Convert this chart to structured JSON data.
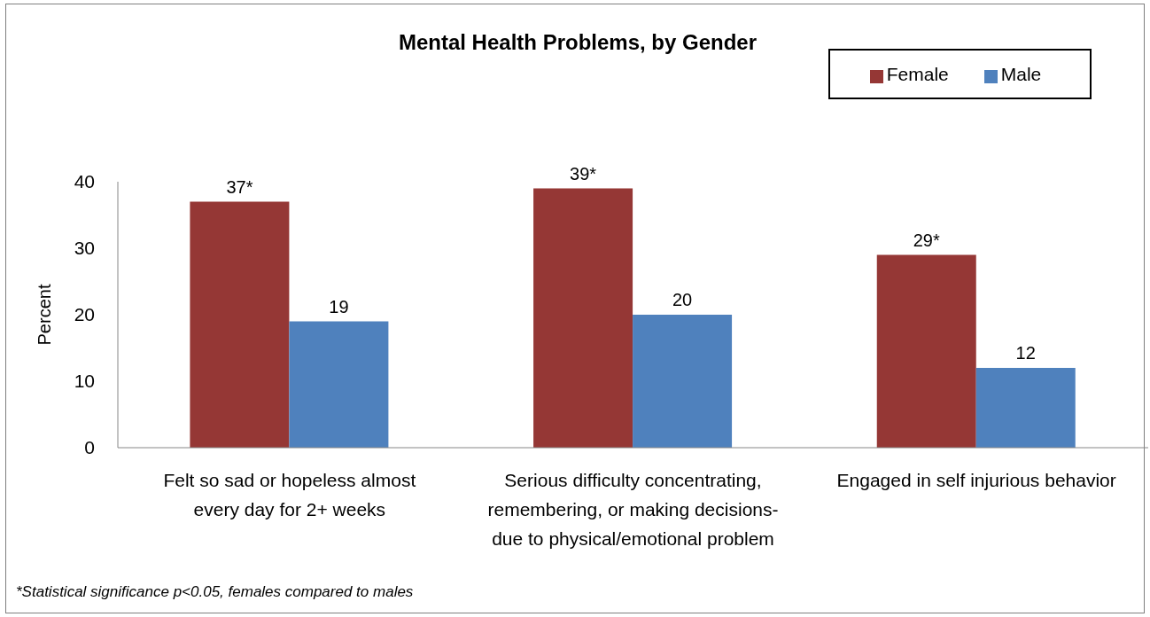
{
  "chart_data": {
    "type": "bar",
    "title": "Mental Health Problems, by Gender",
    "ylabel": "Percent",
    "categories": [
      "Felt so sad or hopeless almost every day for 2+ weeks",
      "Serious difficulty concentrating, remembering, or making decisions- due to physical/emotional problem",
      "Engaged in self injurious behavior"
    ],
    "series": [
      {
        "name": "Female",
        "color": "#953735",
        "values": [
          37,
          39,
          29
        ],
        "value_labels": [
          "37*",
          "39*",
          "29*"
        ]
      },
      {
        "name": "Male",
        "color": "#4f81bd",
        "values": [
          19,
          20,
          12
        ],
        "value_labels": [
          "19",
          "20",
          "12"
        ]
      }
    ],
    "ylim": [
      0,
      40
    ],
    "yticks": [
      0,
      10,
      20,
      30,
      40
    ],
    "legend": "top right",
    "annotations": [
      "*Statistical significance p<0.05, females compared to males"
    ]
  }
}
